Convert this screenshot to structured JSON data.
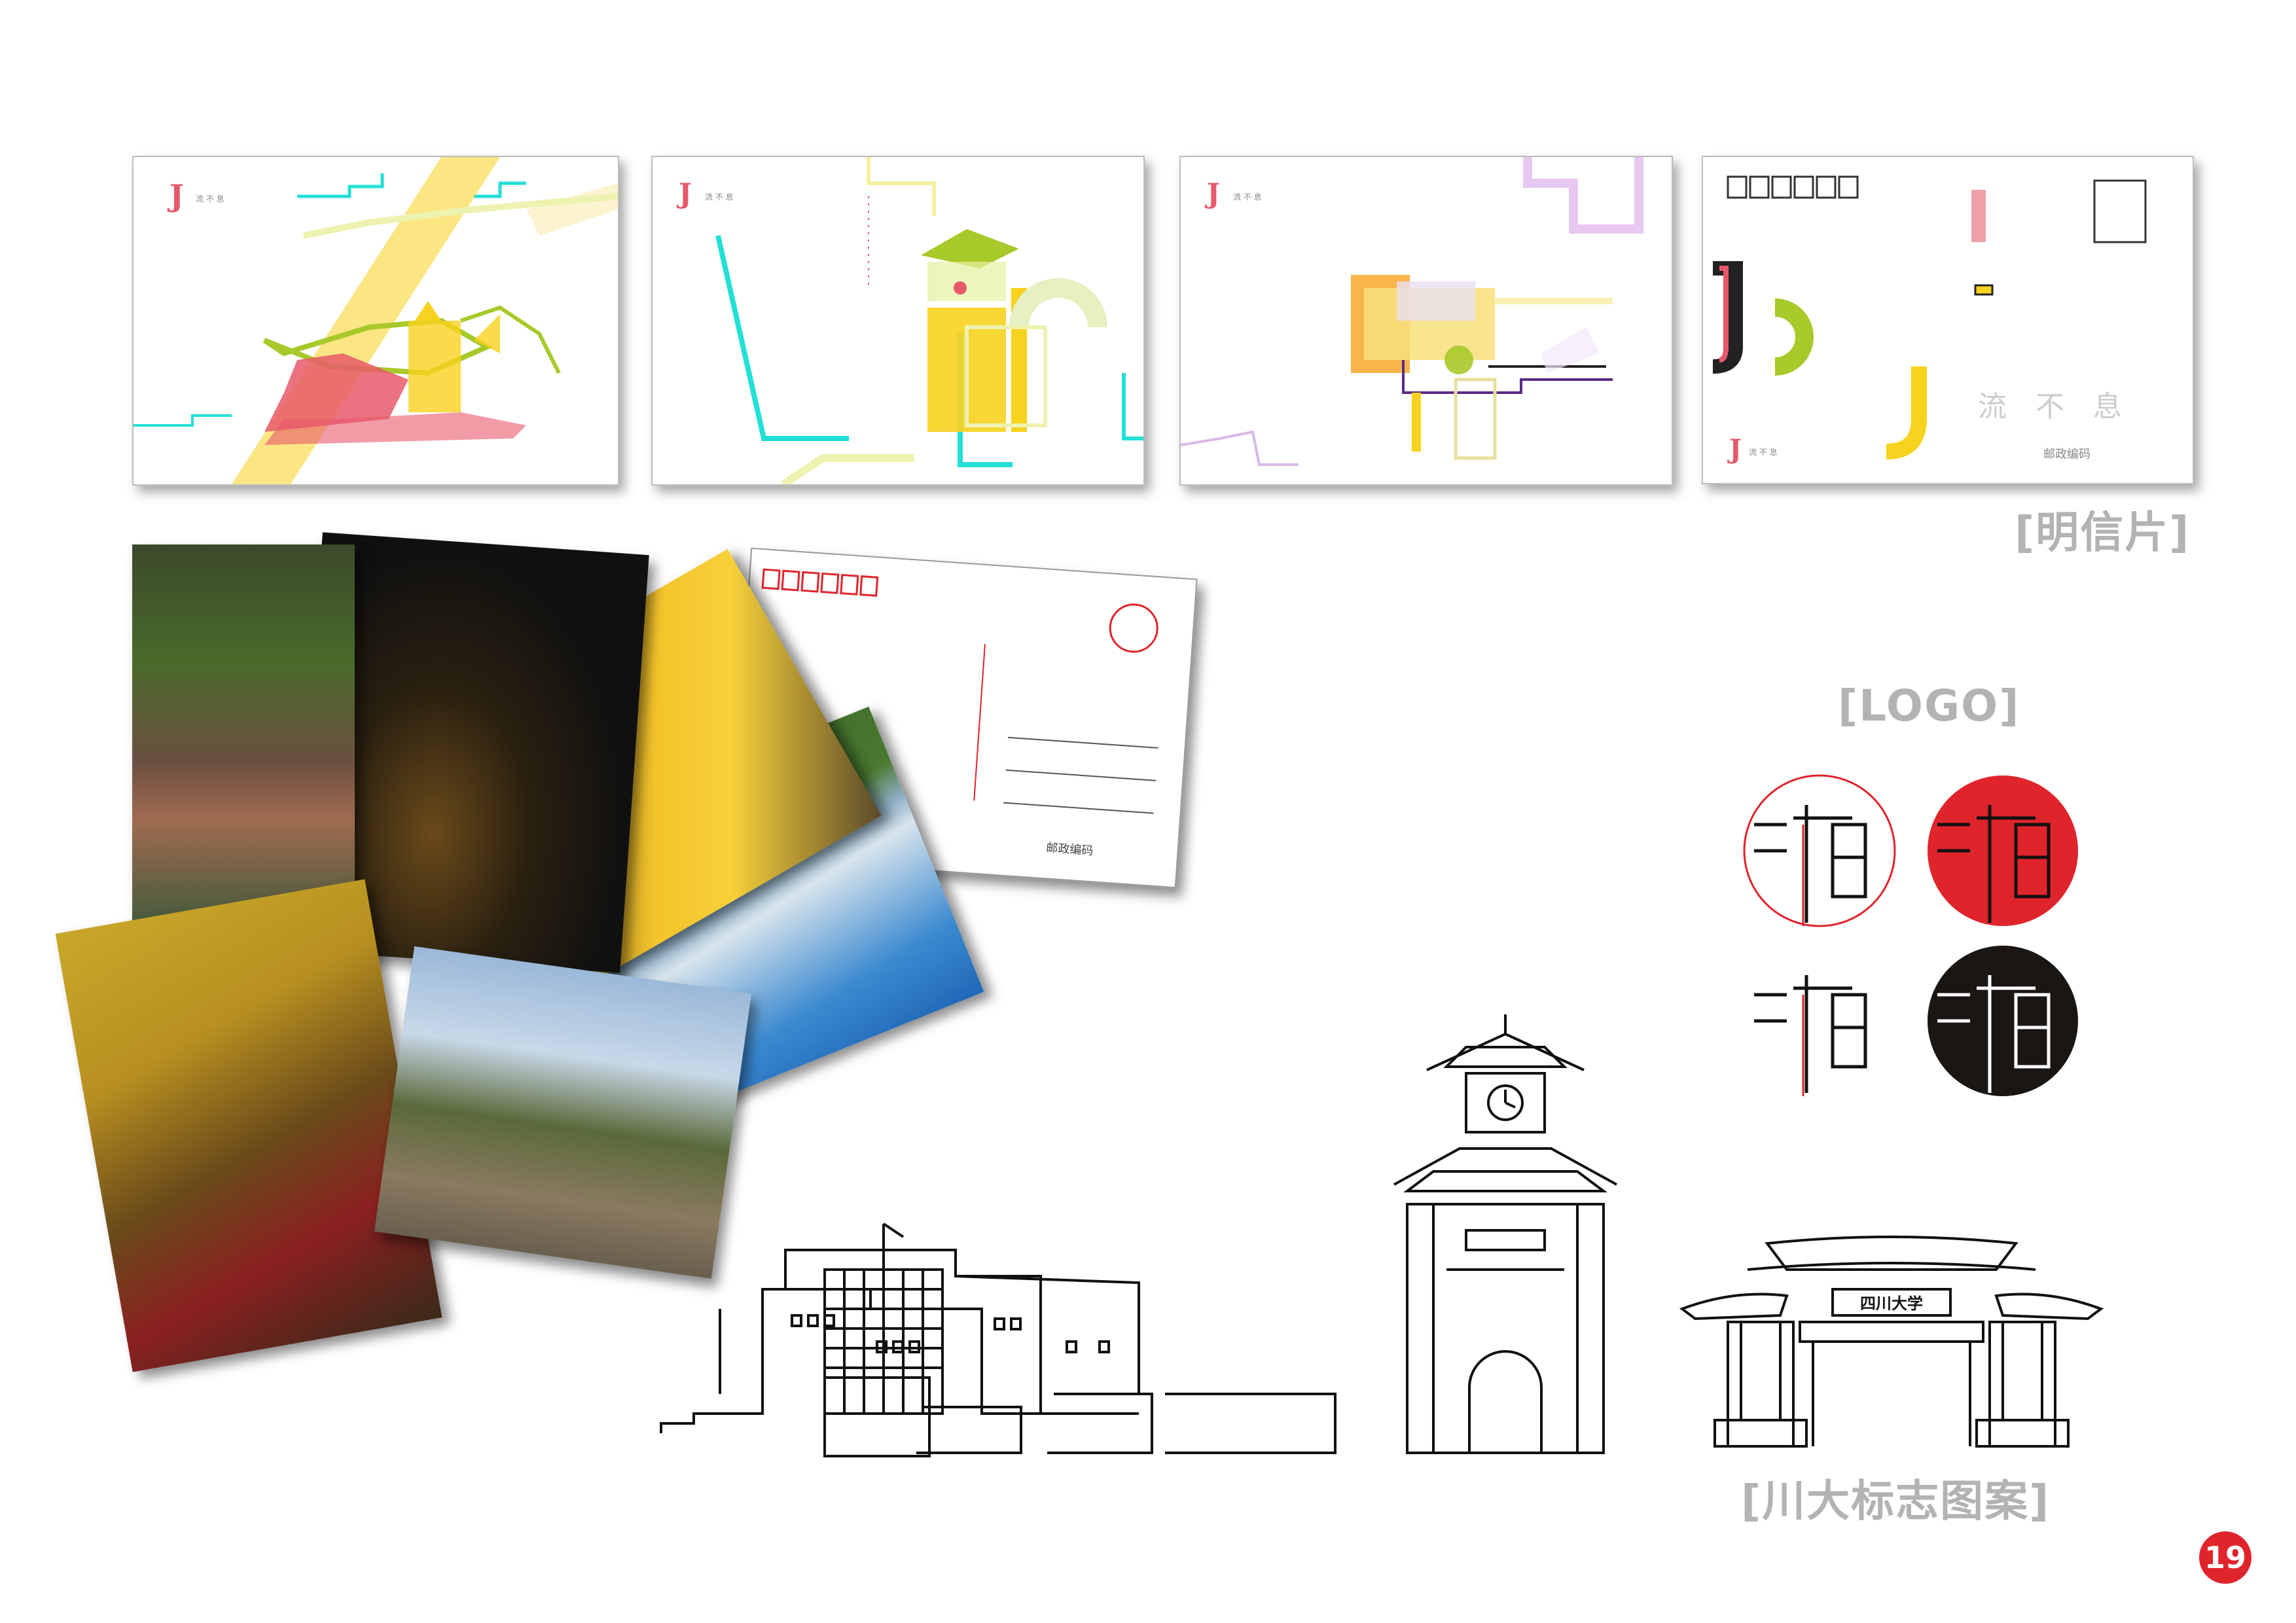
{
  "sections": {
    "postcards_heading": "[明信片]",
    "logo_heading": "[LOGO]",
    "landmarks_heading": "[川大标志图案]"
  },
  "postcard_back": {
    "logo_text": "流 不 息",
    "sender_label": "邮政编码",
    "big_text": "流　不　息"
  },
  "postcard_small_logo": "流 不 息",
  "photo_postcard_back": {
    "sender_label": "邮政编码"
  },
  "gate_plaque": "四川大学",
  "page_number": "19",
  "colors": {
    "accent_red": "#e0242c",
    "heading_gray": "#b3b3b3",
    "yellow": "#f7d21e",
    "lime": "#a8c92a",
    "pink": "#e7596a",
    "cyan": "#22e0d6"
  }
}
